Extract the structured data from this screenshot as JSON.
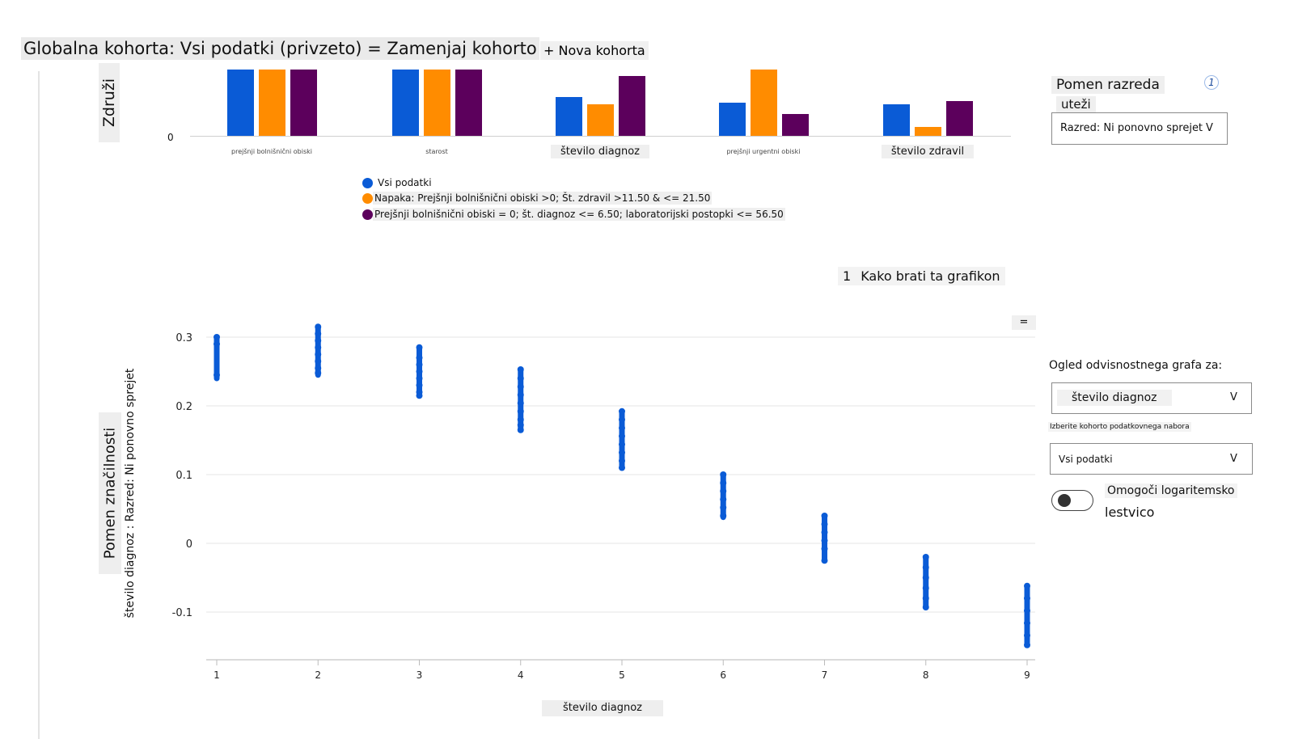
{
  "header": {
    "title": "Globalna kohorta: Vsi podatki (privzeto) = Zamenjaj kohorto",
    "new_cohort_label": "+ Nova kohorta"
  },
  "aggregate": {
    "y_label": "Združi",
    "zero_tick": "0",
    "categories": [
      "prejšnji bolnišnični obiski",
      "starost",
      "število diagnoz",
      "prejšnji urgentni obiski",
      "število zdravil"
    ],
    "legend": [
      {
        "label": "Vsi podatki",
        "color": "#0a5bd6"
      },
      {
        "label": "Napaka: Prejšnji bolnišnični obiski >0; Št. zdravil >11.50 & <= 21.50",
        "color": "#ff8c00"
      },
      {
        "label": "Prejšnji bolnišnični obiski = 0; št. diagnoz <= 6.50; laboratorijski postopki <= 56.50",
        "color": "#5c005c"
      }
    ]
  },
  "controls": {
    "class_importance_title": "Pomen razreda",
    "weights_label": "uteži",
    "info_icon": "1",
    "class_dropdown": "Razred: Ni ponovno sprejet",
    "chevron": "V",
    "dependence_title": "Ogled odvisnostnega grafa za:",
    "feature_dropdown": "število diagnoz",
    "cohort_select_label": "Izberite kohorto podatkovnega nabora",
    "cohort_dropdown": "Vsi podatki",
    "log_toggle_line1": "Omogoči logaritemsko",
    "log_toggle_line2": "lestvico",
    "log_toggle_on": false
  },
  "dependence": {
    "how_to_num": "1",
    "how_to_label": "Kako brati ta grafikon",
    "menu_icon": "=",
    "y_label": "Pomen značilnosti",
    "y_sublabel": "število diagnoz : Razred: Ni ponovno sprejet",
    "x_label": "število diagnoz"
  },
  "chart_data": [
    {
      "type": "bar",
      "categories": [
        "prejšnji bolnišnični obiski",
        "starost",
        "število diagnoz",
        "prejšnji urgentni obiski",
        "število zdravil"
      ],
      "series": [
        {
          "name": "Vsi podatki",
          "color": "#0a5bd6",
          "values": [
            1.0,
            1.0,
            0.59,
            0.5,
            0.47
          ]
        },
        {
          "name": "Napaka: Prejšnji bolnišnični obiski >0; Št. zdravil >11.50 & <= 21.50",
          "color": "#ff8c00",
          "values": [
            1.0,
            1.0,
            0.47,
            1.0,
            0.14
          ]
        },
        {
          "name": "Prejšnji bolnišnični obiski = 0; št. diagnoz <= 6.50; laboratorijski postopki <= 56.50",
          "color": "#5c005c",
          "values": [
            1.0,
            1.0,
            0.9,
            0.33,
            0.52
          ]
        }
      ],
      "ylim": [
        0,
        1
      ],
      "yticks": [
        "0"
      ]
    },
    {
      "type": "scatter",
      "xlabel": "število diagnoz",
      "ylabel": "Pomen značilnosti",
      "xticks": [
        1,
        2,
        3,
        4,
        5,
        6,
        7,
        8,
        9
      ],
      "yticks": [
        -0.1,
        0,
        0.1,
        0.2,
        0.3
      ],
      "ylim": [
        -0.15,
        0.32
      ],
      "xlim": [
        1,
        9
      ],
      "color": "#0a5bd6",
      "groups": [
        {
          "x": 1,
          "ymin": 0.24,
          "ymax": 0.3,
          "points": [
            0.3,
            0.29,
            0.245
          ]
        },
        {
          "x": 2,
          "ymin": 0.245,
          "ymax": 0.315,
          "points": [
            0.315,
            0.305,
            0.295,
            0.285,
            0.275,
            0.265,
            0.255,
            0.248
          ]
        },
        {
          "x": 3,
          "ymin": 0.215,
          "ymax": 0.285,
          "points": [
            0.285,
            0.27,
            0.26,
            0.25,
            0.24,
            0.23,
            0.22,
            0.215
          ]
        },
        {
          "x": 4,
          "ymin": 0.165,
          "ymax": 0.253,
          "points": [
            0.253,
            0.24,
            0.228,
            0.216,
            0.204,
            0.192,
            0.18,
            0.172,
            0.165
          ]
        },
        {
          "x": 5,
          "ymin": 0.11,
          "ymax": 0.192,
          "points": [
            0.192,
            0.18,
            0.168,
            0.156,
            0.144,
            0.132,
            0.12,
            0.11
          ]
        },
        {
          "x": 6,
          "ymin": 0.038,
          "ymax": 0.1,
          "points": [
            0.1,
            0.088,
            0.076,
            0.064,
            0.052,
            0.04
          ]
        },
        {
          "x": 7,
          "ymin": -0.025,
          "ymax": 0.04,
          "points": [
            0.04,
            0.028,
            0.016,
            0.004,
            -0.008,
            -0.025
          ]
        },
        {
          "x": 8,
          "ymin": -0.093,
          "ymax": -0.02,
          "points": [
            -0.02,
            -0.035,
            -0.05,
            -0.065,
            -0.08,
            -0.093
          ]
        },
        {
          "x": 9,
          "ymin": -0.148,
          "ymax": -0.062,
          "points": [
            -0.062,
            -0.08,
            -0.098,
            -0.116,
            -0.134,
            -0.148
          ]
        }
      ]
    }
  ]
}
